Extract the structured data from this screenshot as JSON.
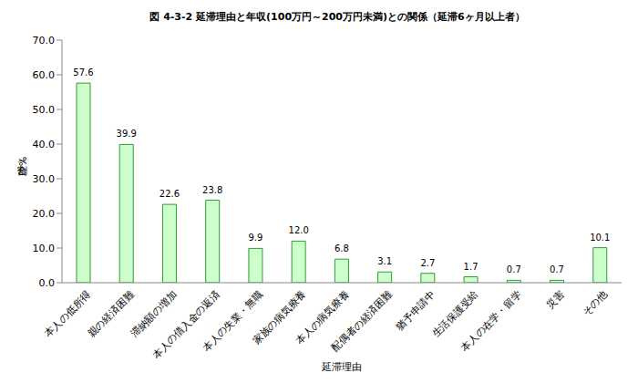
{
  "chart_data": {
    "type": "bar",
    "title": "図 4-3-2 延滞理由と年収(100万円～200万円未満)との関係（延滞6ヶ月以上者）",
    "x_label": "延滞理由",
    "y_label": "割合（%）",
    "categories": [
      "本人の低所得",
      "親の経済困難",
      "滞納額の増加",
      "本人の借入金の返済",
      "本人の失業・無職",
      "家族の病気療養",
      "本人の病気療養",
      "配偶者の経済困難",
      "猶予申請中",
      "生活保護受給",
      "本人の在学・留学",
      "災害",
      "その他"
    ],
    "values": [
      57.6,
      39.9,
      22.6,
      23.8,
      9.9,
      12.0,
      6.8,
      3.1,
      2.7,
      1.7,
      0.7,
      0.7,
      10.1
    ],
    "value_labels": [
      "57.6",
      "39.9",
      "22.6",
      "23.8",
      "9.9",
      "12.0",
      "6.8",
      "3.1",
      "2.7",
      "1.7",
      "0.7",
      "0.7",
      "10.1"
    ],
    "color": "#ccffcc",
    "ylim": [
      0,
      70
    ],
    "yticks": [
      {
        "value": 0,
        "label": "0.0"
      },
      {
        "value": 10,
        "label": "10.0"
      },
      {
        "value": 20,
        "label": "20.0"
      },
      {
        "value": 30,
        "label": "30.0"
      },
      {
        "value": 40,
        "label": "40.0"
      },
      {
        "value": 50,
        "label": "50.0"
      },
      {
        "value": 60,
        "label": "60.0"
      },
      {
        "value": 70,
        "label": "70.0"
      }
    ],
    "grid": false,
    "data_labels": true
  }
}
